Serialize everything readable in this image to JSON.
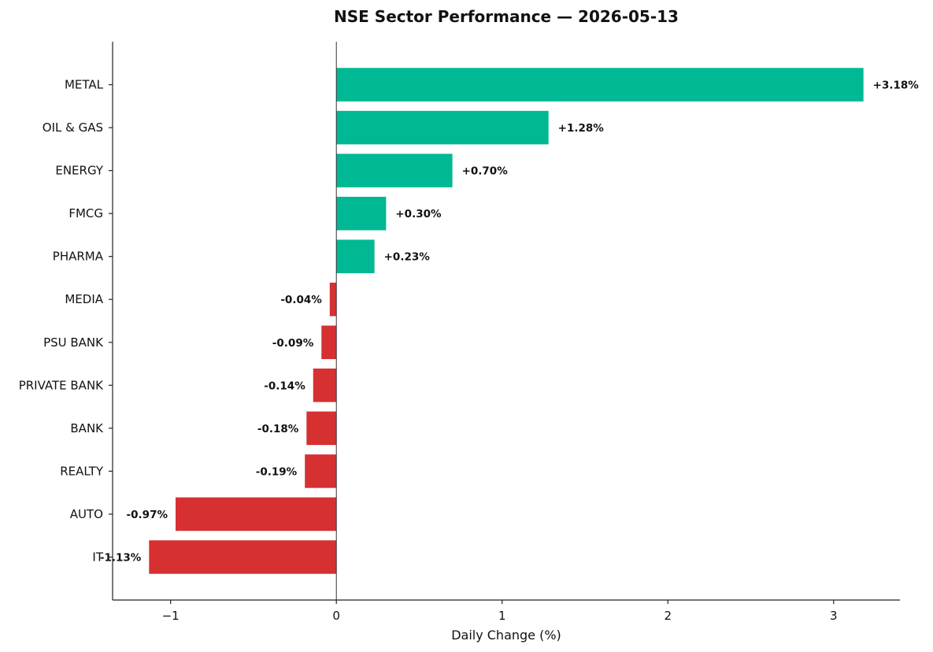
{
  "chart_data": {
    "type": "bar",
    "orientation": "horizontal",
    "title": "NSE Sector Performance — 2026-05-13",
    "xlabel": "Daily Change (%)",
    "ylabel": "",
    "xlim": [
      -1.35,
      3.4
    ],
    "xticks": [
      -1,
      0,
      1,
      2,
      3
    ],
    "xtick_labels": [
      "−1",
      "0",
      "1",
      "2",
      "3"
    ],
    "categories": [
      "METAL",
      "OIL & GAS",
      "ENERGY",
      "FMCG",
      "PHARMA",
      "MEDIA",
      "PSU BANK",
      "PRIVATE BANK",
      "BANK",
      "REALTY",
      "AUTO",
      "IT"
    ],
    "values": [
      3.18,
      1.28,
      0.7,
      0.3,
      0.23,
      -0.04,
      -0.09,
      -0.14,
      -0.18,
      -0.19,
      -0.97,
      -1.13
    ],
    "data_labels": [
      "+3.18%",
      "+1.28%",
      "+0.70%",
      "+0.30%",
      "+0.23%",
      "-0.04%",
      "-0.09%",
      "-0.14%",
      "-0.18%",
      "-0.19%",
      "-0.97%",
      "-1.13%"
    ],
    "colors": {
      "positive": "#00b894",
      "negative": "#d63031"
    },
    "grid": false,
    "legend": "none"
  }
}
